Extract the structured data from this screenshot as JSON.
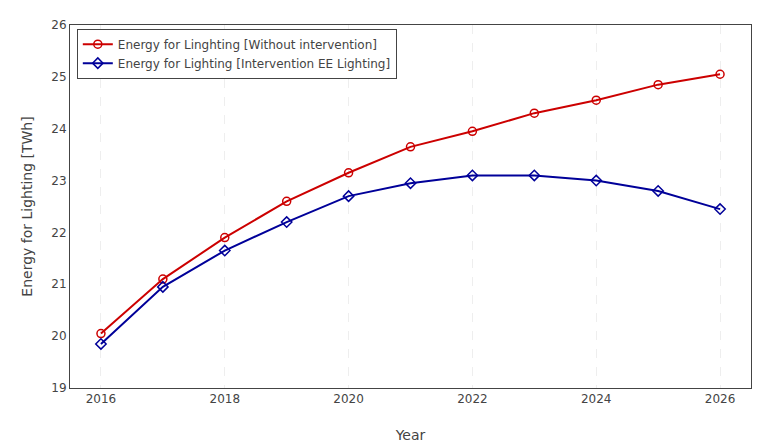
{
  "chart_data": {
    "type": "line",
    "xlabel": "Year",
    "ylabel": "Energy for Lighting [TWh]",
    "series": [
      {
        "name": "Energy for Linghting [Without intervention]",
        "color": "#cc0000",
        "marker": "circle",
        "x": [
          2016,
          2017,
          2018,
          2019,
          2020,
          2021,
          2022,
          2023,
          2024,
          2025,
          2026
        ],
        "values": [
          20.05,
          21.1,
          21.9,
          22.6,
          23.15,
          23.65,
          23.95,
          24.3,
          24.55,
          24.85,
          25.05
        ]
      },
      {
        "name": "Energy for Lighting [Intervention EE Lighting]",
        "color": "#000099",
        "marker": "diamond",
        "x": [
          2016,
          2017,
          2018,
          2019,
          2020,
          2021,
          2022,
          2023,
          2024,
          2025,
          2026
        ],
        "values": [
          19.85,
          20.95,
          21.65,
          22.2,
          22.7,
          22.95,
          23.1,
          23.1,
          23.0,
          22.8,
          22.45
        ]
      }
    ],
    "xlim": [
      2015.5,
      2026.5
    ],
    "xticks": [
      2016,
      2018,
      2020,
      2022,
      2024,
      2026
    ],
    "ylim": [
      19,
      26
    ],
    "yticks": [
      19,
      20,
      21,
      22,
      23,
      24,
      25,
      26
    ],
    "grid": "x",
    "legend": "upper left"
  }
}
